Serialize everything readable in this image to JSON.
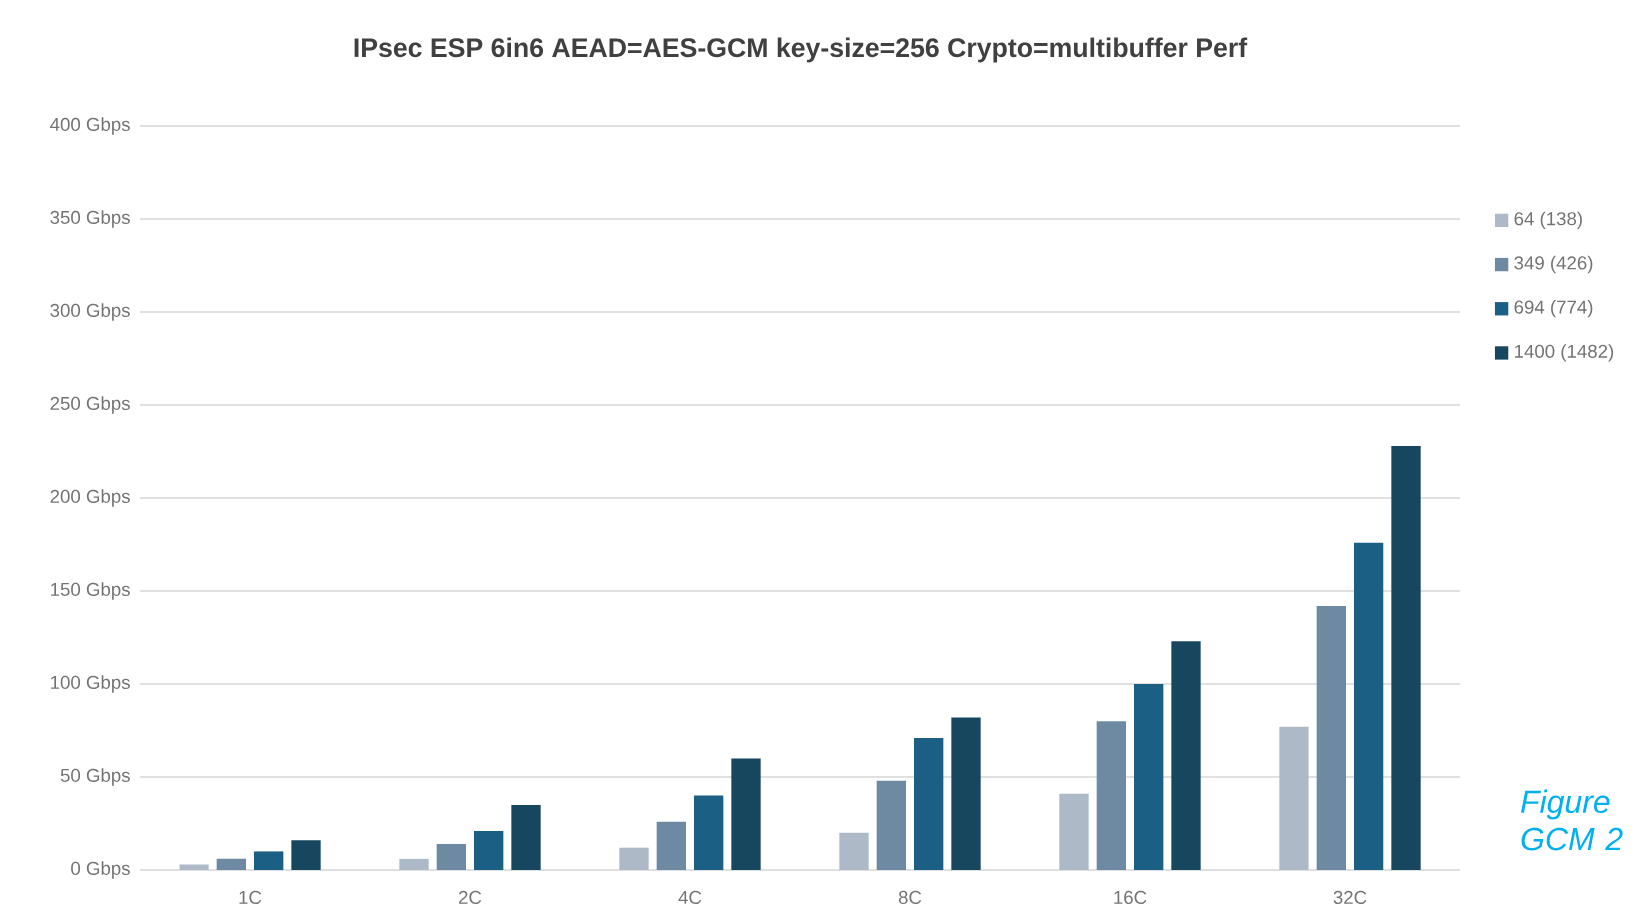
{
  "chart_data": {
    "type": "bar",
    "title": "IPsec ESP 6in6 AEAD=AES-GCM key-size=256 Crypto=multibuffer Perf",
    "categories": [
      "1C",
      "2C",
      "4C",
      "8C",
      "16C",
      "32C"
    ],
    "series": [
      {
        "name": "64 (138)",
        "color": "#adb9c7",
        "values": [
          3,
          6,
          12,
          20,
          41,
          77
        ]
      },
      {
        "name": "349 (426)",
        "color": "#6e8aa3",
        "values": [
          6,
          14,
          26,
          48,
          80,
          142
        ]
      },
      {
        "name": "694 (774)",
        "color": "#1c5f84",
        "values": [
          10,
          21,
          40,
          71,
          100,
          176
        ]
      },
      {
        "name": "1400 (1482)",
        "color": "#17475f",
        "values": [
          16,
          35,
          60,
          82,
          123,
          228
        ]
      }
    ],
    "ylim": [
      0,
      400
    ],
    "yticks": [
      {
        "value": 0,
        "label": "0 Gbps"
      },
      {
        "value": 50,
        "label": "50 Gbps"
      },
      {
        "value": 100,
        "label": "100 Gbps"
      },
      {
        "value": 150,
        "label": "150 Gbps"
      },
      {
        "value": 200,
        "label": "200 Gbps"
      },
      {
        "value": 250,
        "label": "250 Gbps"
      },
      {
        "value": 300,
        "label": "300 Gbps"
      },
      {
        "value": 350,
        "label": "350 Gbps"
      },
      {
        "value": 400,
        "label": "400 Gbps"
      }
    ],
    "grid": "y",
    "legend": "right",
    "annotations": [
      "Figure GCM 2"
    ]
  }
}
